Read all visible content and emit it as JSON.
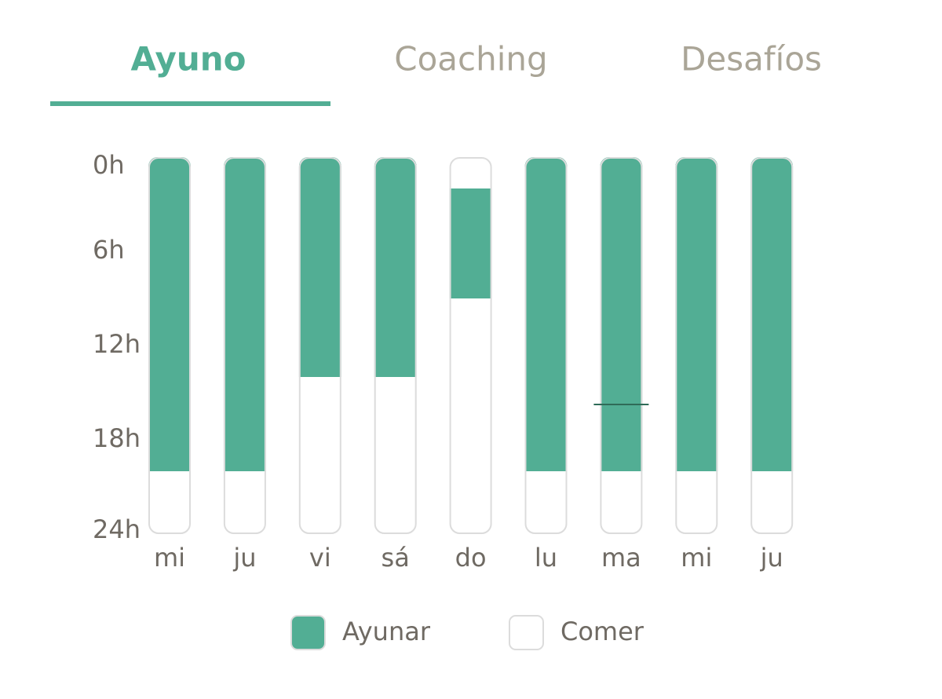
{
  "tabs": [
    "Ayuno",
    "Coaching",
    "Desafíos"
  ],
  "active_tab": "Ayuno",
  "chart_data": {
    "type": "range-bar",
    "categories": [
      "mi",
      "ju",
      "vi",
      "sá",
      "do",
      "lu",
      "ma",
      "mi",
      "ju"
    ],
    "ylim": [
      0,
      24
    ],
    "inverted": true,
    "yticks": [
      {
        "value": 0,
        "label": "0h"
      },
      {
        "value": 6,
        "label": "6h"
      },
      {
        "value": 12,
        "label": "12h"
      },
      {
        "value": 18,
        "label": "18h"
      },
      {
        "value": 24,
        "label": "24h"
      }
    ],
    "series": [
      {
        "name": "Ayunar",
        "color": "#52ae94",
        "start": [
          0,
          0,
          0,
          0,
          2,
          0,
          0,
          0,
          0
        ],
        "end": [
          20,
          20,
          14,
          14,
          9,
          20,
          20,
          20,
          20
        ]
      },
      {
        "name": "Comer",
        "color": "#ffffff"
      }
    ],
    "current_time": [
      null,
      null,
      null,
      null,
      null,
      null,
      15.75,
      null,
      null
    ]
  }
}
